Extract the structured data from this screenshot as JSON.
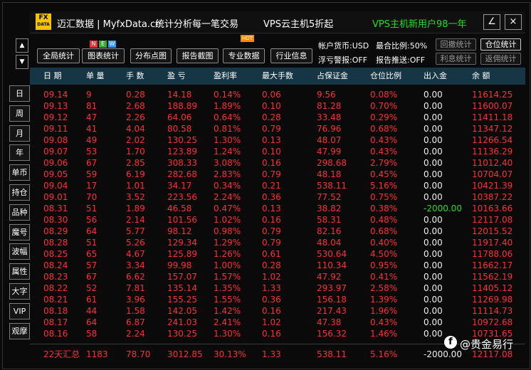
{
  "header": {
    "logo_top": "FX",
    "logo_bottom": "DATA",
    "brand": "迈汇数据 | MyfxData.cn",
    "slogan": "统计分析每一笔交易",
    "ad1": "VPS云主机5折起",
    "ad2": "VPS主机新用户98一年"
  },
  "toolbar": {
    "buttons": [
      "全局统计",
      "图表统计",
      "分布点图",
      "报告截图",
      "专业数据",
      "行业信息"
    ],
    "new_badge": [
      "N",
      "E",
      "W"
    ],
    "hot_badge": "HOT"
  },
  "account": {
    "currency": "帐户货币:USD",
    "ratio": "最合比例:50%",
    "alert": "浮亏警报:OFF",
    "push": "报告推送:OFF",
    "buttons": [
      "回撤统计",
      "仓位统计",
      "利息统计",
      "返佣统计"
    ]
  },
  "sidebar": {
    "tabs": [
      "日",
      "周",
      "月",
      "年",
      "单币",
      "持仓",
      "品种",
      "魔号",
      "波幅",
      "属性",
      "大字",
      "VIP",
      "观摩"
    ]
  },
  "table": {
    "columns": [
      "日 期",
      "单 量",
      "手 数",
      "盈 亏",
      "盈利率",
      "最大手数",
      "占保证金",
      "仓位比例",
      "出入金",
      "余 额"
    ],
    "rows": [
      [
        "09.14",
        "9",
        "0.28",
        "14.18",
        "0.14%",
        "0.06",
        "9.56",
        "0.08%",
        "0.00",
        "11614.25"
      ],
      [
        "09.13",
        "81",
        "2.68",
        "188.89",
        "1.89%",
        "0.10",
        "81.28",
        "0.70%",
        "0.00",
        "11600.07"
      ],
      [
        "09.12",
        "47",
        "2.26",
        "64.06",
        "0.64%",
        "0.28",
        "33.48",
        "0.29%",
        "0.00",
        "11411.18"
      ],
      [
        "09.11",
        "41",
        "4.04",
        "80.58",
        "0.81%",
        "0.79",
        "76.96",
        "0.68%",
        "0.00",
        "11347.12"
      ],
      [
        "09.08",
        "49",
        "2.02",
        "130.25",
        "1.30%",
        "0.13",
        "48.07",
        "0.43%",
        "0.00",
        "11266.54"
      ],
      [
        "09.07",
        "53",
        "1.70",
        "123.89",
        "1.24%",
        "0.10",
        "47.99",
        "0.43%",
        "0.00",
        "11136.29"
      ],
      [
        "09.06",
        "67",
        "2.85",
        "308.33",
        "3.08%",
        "0.16",
        "298.68",
        "2.79%",
        "0.00",
        "11012.40"
      ],
      [
        "09.05",
        "59",
        "6.19",
        "282.68",
        "2.83%",
        "0.79",
        "48.18",
        "0.45%",
        "0.00",
        "10704.07"
      ],
      [
        "09.04",
        "17",
        "1.01",
        "34.17",
        "0.34%",
        "0.21",
        "538.11",
        "5.16%",
        "0.00",
        "10421.39"
      ],
      [
        "09.01",
        "70",
        "3.52",
        "223.56",
        "2.24%",
        "0.36",
        "77.52",
        "0.75%",
        "0.00",
        "10387.22"
      ],
      [
        "08.31",
        "51",
        "1.89",
        "46.58",
        "0.47%",
        "0.13",
        "38.82",
        "0.38%",
        "-2000.00",
        "10163.66"
      ],
      [
        "08.30",
        "56",
        "2.14",
        "101.56",
        "1.02%",
        "0.16",
        "58.31",
        "0.48%",
        "0.00",
        "12117.08"
      ],
      [
        "08.29",
        "64",
        "5.77",
        "98.12",
        "0.98%",
        "0.79",
        "82.16",
        "0.68%",
        "0.00",
        "12015.52"
      ],
      [
        "08.28",
        "51",
        "5.26",
        "129.34",
        "1.29%",
        "0.79",
        "48.04",
        "0.40%",
        "0.00",
        "11917.40"
      ],
      [
        "08.25",
        "65",
        "4.67",
        "125.89",
        "1.26%",
        "0.61",
        "530.64",
        "4.50%",
        "0.00",
        "11788.06"
      ],
      [
        "08.24",
        "57",
        "3.34",
        "99.98",
        "1.00%",
        "0.28",
        "110.34",
        "0.95%",
        "0.00",
        "11662.17"
      ],
      [
        "08.23",
        "67",
        "6.62",
        "157.07",
        "1.57%",
        "1.02",
        "47.92",
        "0.41%",
        "0.00",
        "11562.19"
      ],
      [
        "08.22",
        "52",
        "7.81",
        "135.14",
        "1.35%",
        "1.33",
        "293.97",
        "2.58%",
        "0.00",
        "11405.12"
      ],
      [
        "08.21",
        "61",
        "3.96",
        "155.25",
        "1.55%",
        "0.36",
        "156.18",
        "1.39%",
        "0.00",
        "11269.98"
      ],
      [
        "08.18",
        "44",
        "1.58",
        "142.05",
        "1.42%",
        "0.16",
        "217.43",
        "1.96%",
        "0.00",
        "11114.73"
      ],
      [
        "08.17",
        "64",
        "6.87",
        "241.03",
        "2.41%",
        "1.02",
        "47.38",
        "0.43%",
        "0.00",
        "10972.68"
      ],
      [
        "08.16",
        "58",
        "2.24",
        "130.25",
        "1.30%",
        "0.16",
        "156.32",
        "1.46%",
        "0.00",
        "10731.65"
      ]
    ],
    "summary": [
      "22天汇总",
      "1183",
      "78.70",
      "3012.85",
      "30.13%",
      "1.33",
      "538.11",
      "5.16%",
      "-2000.00",
      "12117.08"
    ]
  },
  "watermark": "@贵金易行"
}
